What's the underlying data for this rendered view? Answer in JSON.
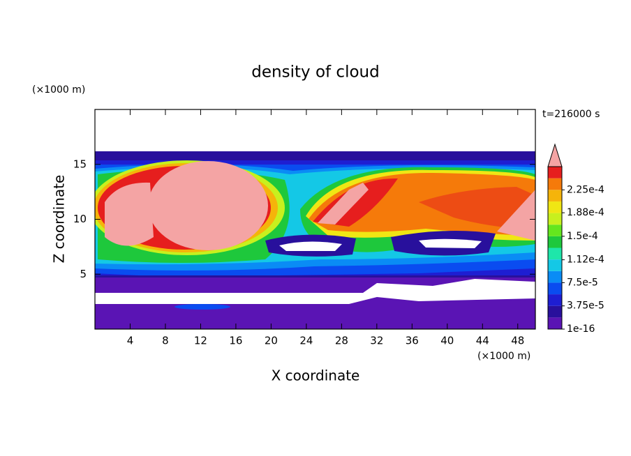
{
  "chart_data": {
    "type": "contour",
    "title": "density of cloud",
    "x_label": "X coordinate",
    "y_label": "Z coordinate",
    "x_unit": "(×1000 m)",
    "y_unit": "(×1000 m)",
    "annotation": "t=216000 s",
    "xlim": [
      0,
      50
    ],
    "ylim": [
      0,
      20
    ],
    "xticks": [
      4,
      8,
      12,
      16,
      20,
      24,
      28,
      32,
      36,
      40,
      44,
      48
    ],
    "yticks": [
      5,
      10,
      15
    ],
    "colorbar": {
      "lim": [
        1e-16,
        0.0002625
      ],
      "colors": [
        "#5a14b4",
        "#28109c",
        "#1e1ed2",
        "#0a4cf0",
        "#0a8cf5",
        "#14c8e6",
        "#1ee6aa",
        "#1ec83c",
        "#64e61e",
        "#c8f01e",
        "#f0e614",
        "#f5b40a",
        "#f57a0a",
        "#e61e1e"
      ],
      "over_color": "#f4a4a4",
      "ticks": [
        1e-16,
        {
          "value": 3.75e-05,
          "label": "3.75e-5"
        },
        {
          "value": 7.5e-05,
          "label": "7.5e-5"
        },
        {
          "value": 0.000112,
          "label": "1.12e-4"
        },
        {
          "value": 0.00015,
          "label": "1.5e-4"
        },
        {
          "value": 0.000188,
          "label": "1.88e-4"
        },
        {
          "value": 0.000225,
          "label": "2.25e-4"
        }
      ]
    }
  }
}
